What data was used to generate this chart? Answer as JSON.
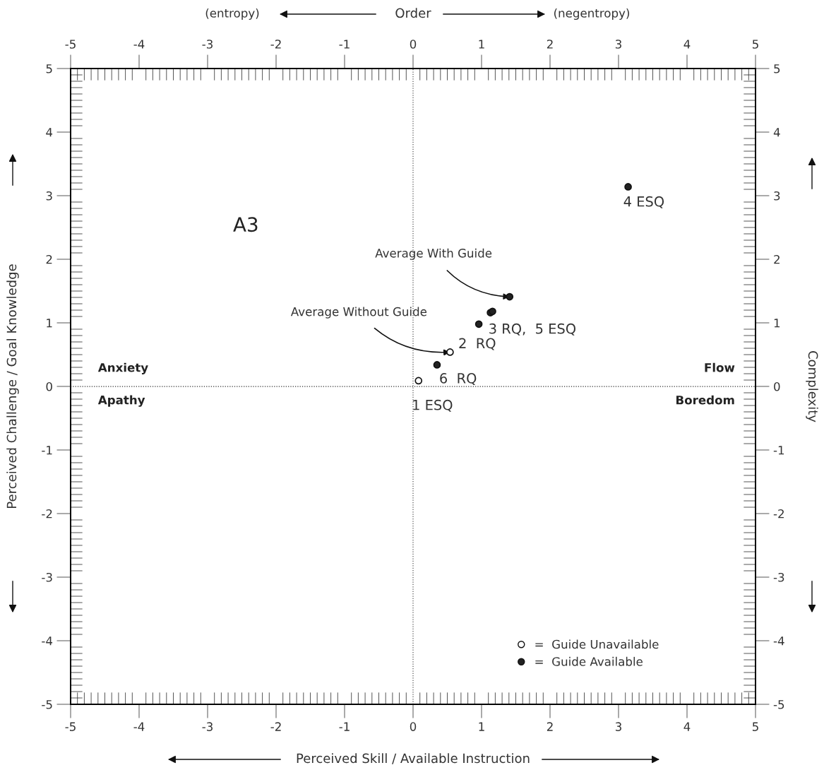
{
  "chart_data": {
    "type": "scatter",
    "xlabel": "Perceived Skill / Available Instruction",
    "ylabel": "Perceived Challenge / Goal Knowledge",
    "y2label": "Complexity",
    "x2label": "Order",
    "xlim": [
      -5,
      5
    ],
    "xticks": [
      -5,
      -4,
      -3,
      -2,
      -1,
      0,
      1,
      2,
      3,
      4,
      5
    ],
    "ylim": [
      -5,
      5
    ],
    "yticks": [
      -5,
      -4,
      -3,
      -2,
      -1,
      0,
      1,
      2,
      3,
      4,
      5
    ],
    "x2lim": [
      -5,
      5
    ],
    "x2ticks": [
      -5,
      -4,
      -3,
      -2,
      -1,
      0,
      1,
      2,
      3,
      4,
      5
    ],
    "y2lim": [
      -5,
      5
    ],
    "y2ticks": [
      -5,
      -4,
      -3,
      -2,
      -1,
      0,
      1,
      2,
      3,
      4,
      5
    ],
    "marker": "circle",
    "legend": "bottom",
    "grid": false,
    "series": [
      {
        "name": "=  Guide Unavailable",
        "color": "#ffffff",
        "x": [
          0.08,
          0.54
        ],
        "values": [
          0.09,
          0.54
        ]
      },
      {
        "name": "=  Guide Available",
        "color": "#222222",
        "x": [
          0.35,
          0.96,
          1.13,
          1.16,
          1.41,
          3.14
        ],
        "values": [
          0.34,
          0.98,
          1.16,
          1.18,
          1.41,
          3.14
        ]
      }
    ],
    "ref_lines": [
      {
        "axis": "x",
        "value": 0,
        "color": "#555555",
        "line_style": "dotted"
      },
      {
        "axis": "y",
        "value": 0,
        "color": "#333333",
        "line_style": "dotted"
      }
    ],
    "annotations": [
      "A3",
      "Anxiety",
      "Apathy",
      "Flow",
      "Boredom",
      "(entropy)",
      "(negentropy)",
      {
        "text": "4 ESQ",
        "x": 3.14,
        "y": 3.14
      },
      {
        "text": "3 RQ,  5 ESQ",
        "x": 1.16,
        "y": 1.18
      },
      {
        "text": "2  RQ",
        "x": 0.96,
        "y": 0.98
      },
      {
        "text": "6  RQ",
        "x": 0.35,
        "y": 0.34
      },
      {
        "text": "1 ESQ",
        "x": 0.08,
        "y": 0.09
      },
      {
        "text": "Average With Guide",
        "x": 1.41,
        "y": 1.41
      },
      {
        "text": "Average Without Guide",
        "x": 0.54,
        "y": 0.54
      }
    ]
  }
}
